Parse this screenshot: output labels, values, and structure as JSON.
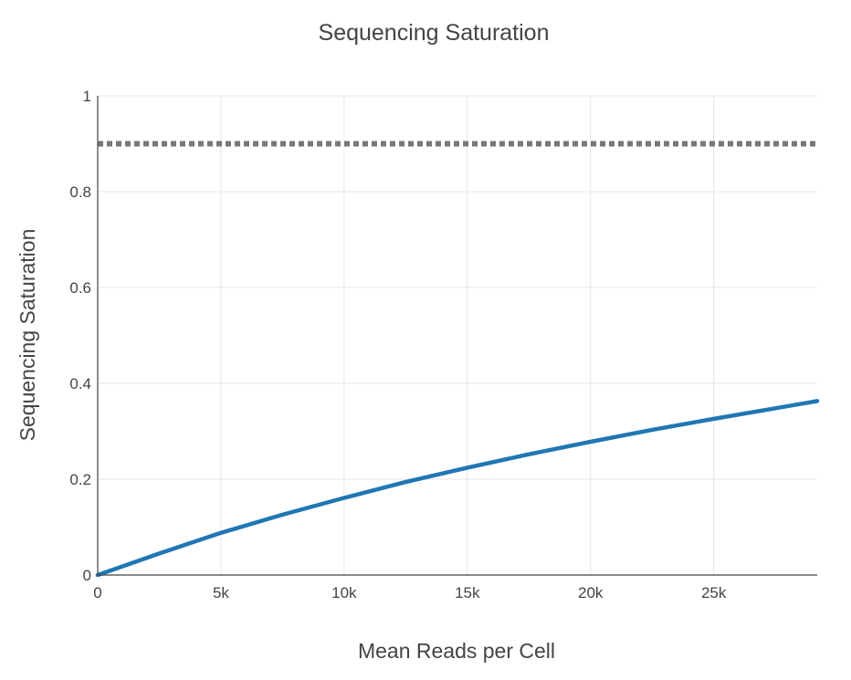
{
  "chart_data": {
    "type": "line",
    "title": "Sequencing Saturation",
    "xlabel": "Mean Reads per Cell",
    "ylabel": "Sequencing Saturation",
    "xlim": [
      0,
      29200
    ],
    "ylim": [
      0,
      1
    ],
    "x_ticks": [
      0,
      5000,
      10000,
      15000,
      20000,
      25000
    ],
    "x_tick_labels": [
      "0",
      "5k",
      "10k",
      "15k",
      "20k",
      "25k"
    ],
    "y_ticks": [
      0,
      0.2,
      0.4,
      0.6,
      0.8,
      1
    ],
    "y_tick_labels": [
      "0",
      "0.2",
      "0.4",
      "0.6",
      "0.8",
      "1"
    ],
    "grid": true,
    "series": [
      {
        "color": "#1f77b4",
        "x": [
          0,
          2500,
          5000,
          7500,
          10000,
          12500,
          15000,
          17500,
          20000,
          22500,
          25000,
          27500,
          29200
        ],
        "y": [
          0,
          0.045,
          0.088,
          0.126,
          0.161,
          0.194,
          0.224,
          0.252,
          0.278,
          0.303,
          0.326,
          0.348,
          0.363
        ]
      }
    ],
    "reference_line": {
      "y": 0.9,
      "color": "#777777",
      "style": "dotted"
    }
  }
}
